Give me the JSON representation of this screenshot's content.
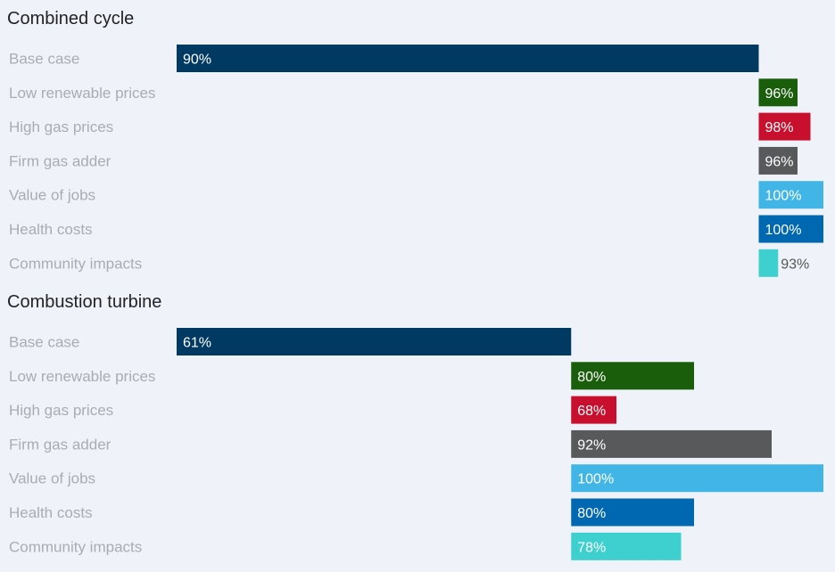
{
  "chart_data": [
    {
      "type": "bar",
      "orientation": "horizontal",
      "style": "waterfall",
      "title": "Combined cycle",
      "categories": [
        "Base case",
        "Low renewable prices",
        "High gas prices",
        "Firm gas adder",
        "Value of jobs",
        "Health costs",
        "Community impacts"
      ],
      "values": [
        90,
        96,
        98,
        96,
        100,
        100,
        93
      ],
      "value_labels": [
        "90%",
        "96%",
        "98%",
        "96%",
        "100%",
        "100%",
        "93%"
      ],
      "bar_start": [
        0,
        90,
        90,
        90,
        90,
        90,
        90
      ],
      "colors": [
        "#003a63",
        "#1a5e0c",
        "#c8102e",
        "#58595b",
        "#41b6e6",
        "#0067b1",
        "#3ecfcf"
      ],
      "xlim": [
        0,
        100
      ]
    },
    {
      "type": "bar",
      "orientation": "horizontal",
      "style": "waterfall",
      "title": "Combustion turbine",
      "categories": [
        "Base case",
        "Low renewable prices",
        "High gas prices",
        "Firm gas adder",
        "Value of jobs",
        "Health costs",
        "Community impacts"
      ],
      "values": [
        61,
        80,
        68,
        92,
        100,
        80,
        78
      ],
      "value_labels": [
        "61%",
        "80%",
        "68%",
        "92%",
        "100%",
        "80%",
        "78%"
      ],
      "bar_start": [
        0,
        61,
        61,
        61,
        61,
        61,
        61
      ],
      "colors": [
        "#003a63",
        "#1a5e0c",
        "#c8102e",
        "#58595b",
        "#41b6e6",
        "#0067b1",
        "#3ecfcf"
      ],
      "xlim": [
        0,
        100
      ]
    }
  ]
}
